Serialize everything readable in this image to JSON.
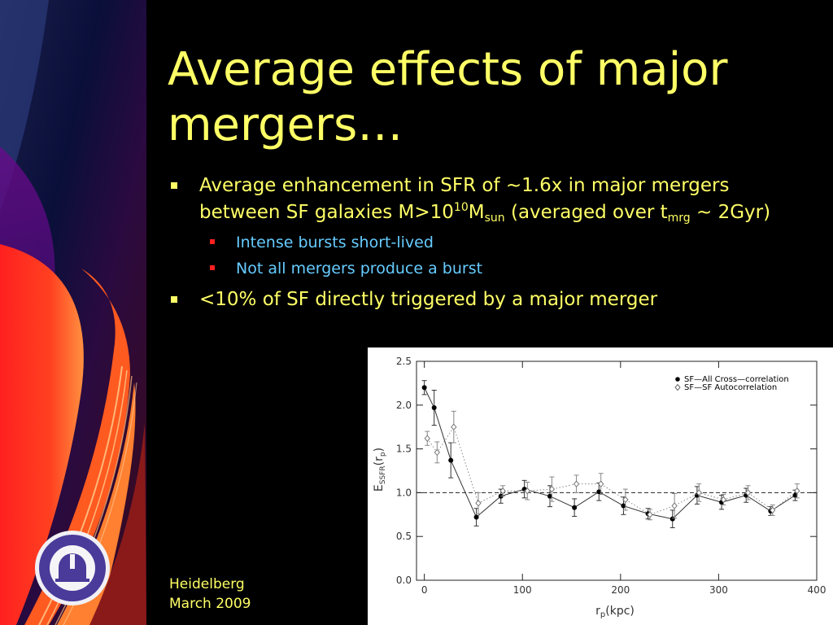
{
  "slide": {
    "title": "Average effects of major mergers…",
    "bullets": [
      {
        "parts": [
          {
            "t": "Average enhancement in SFR of ~1.6x in major mergers between SF galaxies M>10"
          },
          {
            "sup": "10"
          },
          {
            "t": "M"
          },
          {
            "sub": "sun"
          },
          {
            "t": " (averaged over t"
          },
          {
            "sub": "mrg"
          },
          {
            "t": " ~ 2Gyr)"
          }
        ],
        "sub": [
          "Intense bursts short-lived",
          "Not all mergers produce a burst"
        ]
      },
      {
        "parts": [
          {
            "t": "<10% of SF directly triggered by a major merger"
          }
        ],
        "sub": []
      }
    ],
    "footer": [
      "Heidelberg",
      "March 2009"
    ],
    "colors": {
      "title": "#ffff66",
      "subtext": "#66ccff",
      "sub_marker": "#ff2020",
      "background": "#000000"
    },
    "logo": {
      "icon": "observatory-dome-icon"
    }
  },
  "chart_data": {
    "type": "line",
    "title": "",
    "xlabel": "r_p (kpc)",
    "ylabel": "E_SSFR(r_p)",
    "xlim": [
      -8,
      400
    ],
    "ylim": [
      0,
      2.5
    ],
    "xticks": [
      0,
      100,
      200,
      300,
      400
    ],
    "yticks": [
      "0.0",
      "0.5",
      "1.0",
      "1.5",
      "2.0",
      "2.5"
    ],
    "reference_line": 1.0,
    "legend_position": "top-right",
    "series": [
      {
        "name": "SF—All Cross—correlation",
        "marker": "filled-circle",
        "line": "solid",
        "x": [
          0,
          10,
          27,
          53,
          78,
          102,
          128,
          153,
          178,
          203,
          228,
          253,
          278,
          303,
          328,
          353,
          378
        ],
        "y": [
          2.2,
          1.97,
          1.37,
          0.72,
          0.96,
          1.04,
          0.96,
          0.83,
          1.01,
          0.85,
          0.76,
          0.7,
          0.97,
          0.89,
          0.97,
          0.79,
          0.97
        ],
        "err": [
          0.08,
          0.2,
          0.2,
          0.1,
          0.08,
          0.1,
          0.12,
          0.1,
          0.1,
          0.1,
          0.06,
          0.1,
          0.1,
          0.08,
          0.08,
          0.05,
          0.06
        ]
      },
      {
        "name": "SF—SF Autocorrelation",
        "marker": "open-diamond",
        "line": "dotted",
        "x": [
          3,
          13,
          30,
          55,
          80,
          105,
          130,
          155,
          180,
          205,
          230,
          255,
          280,
          305,
          330,
          355,
          380
        ],
        "y": [
          1.62,
          1.46,
          1.75,
          0.88,
          1.02,
          1.02,
          1.04,
          1.1,
          1.1,
          0.92,
          0.75,
          0.85,
          1.0,
          0.92,
          1.0,
          0.8,
          1.02
        ],
        "err": [
          0.08,
          0.12,
          0.18,
          0.12,
          0.06,
          0.1,
          0.14,
          0.1,
          0.12,
          0.12,
          0.06,
          0.14,
          0.1,
          0.06,
          0.08,
          0.06,
          0.08
        ]
      }
    ]
  }
}
